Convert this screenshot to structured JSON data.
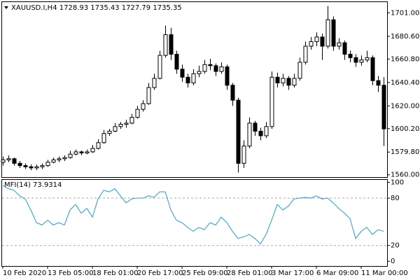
{
  "chart_data": [
    {
      "type": "candlestick",
      "title": "XAUUSD.I,H4  1728.93 1735.43 1727.79 1735.35",
      "categories": [
        "10 Feb 2020",
        null,
        null,
        null,
        null,
        null,
        null,
        null,
        "13 Feb 05:00",
        null,
        null,
        null,
        null,
        null,
        null,
        null,
        "18 Feb 01:00",
        null,
        null,
        null,
        null,
        null,
        null,
        null,
        "20 Feb 17:00",
        null,
        null,
        null,
        null,
        null,
        null,
        null,
        "25 Feb 09:00",
        null,
        null,
        null,
        null,
        null,
        null,
        null,
        "28 Feb 01:00",
        null,
        null,
        null,
        null,
        null,
        null,
        null,
        "3 Mar 17:00",
        null,
        null,
        null,
        null,
        null,
        null,
        null,
        "6 Mar 09:00",
        null,
        null,
        null,
        null,
        null,
        null,
        null,
        "11 Mar 00:00",
        null,
        null,
        null,
        null
      ],
      "open": [
        1571,
        1573,
        1574,
        1570,
        1568,
        1567,
        1566,
        1567,
        1568,
        1571,
        1573,
        1574,
        1575,
        1578,
        1580,
        1579,
        1580,
        1583,
        1588,
        1596,
        1598,
        1602,
        1604,
        1605,
        1610,
        1617,
        1622,
        1636,
        1644,
        1664,
        1682,
        1665,
        1652,
        1645,
        1640,
        1648,
        1650,
        1656,
        1655,
        1650,
        1654,
        1638,
        1625,
        1570,
        1585,
        1605,
        1598,
        1594,
        1602,
        1645,
        1640,
        1644,
        1638,
        1644,
        1658,
        1672,
        1676,
        1680,
        1672,
        1695,
        1672,
        1675,
        1665,
        1662,
        1658,
        1660,
        1662,
        1642,
        1638
      ],
      "high": [
        1576,
        1577,
        1575,
        1572,
        1570,
        1569,
        1569,
        1570,
        1573,
        1575,
        1576,
        1577,
        1581,
        1582,
        1581,
        1582,
        1586,
        1591,
        1599,
        1600,
        1605,
        1606,
        1608,
        1613,
        1620,
        1625,
        1640,
        1648,
        1668,
        1690,
        1688,
        1668,
        1656,
        1648,
        1652,
        1655,
        1660,
        1661,
        1657,
        1658,
        1656,
        1640,
        1627,
        1590,
        1610,
        1607,
        1601,
        1606,
        1650,
        1649,
        1648,
        1646,
        1648,
        1662,
        1676,
        1680,
        1684,
        1683,
        1707,
        1698,
        1679,
        1677,
        1668,
        1665,
        1664,
        1668,
        1664,
        1646,
        1645
      ],
      "low": [
        1568,
        1571,
        1568,
        1566,
        1565,
        1564,
        1564,
        1565,
        1567,
        1570,
        1571,
        1572,
        1574,
        1577,
        1577,
        1578,
        1579,
        1582,
        1587,
        1594,
        1597,
        1600,
        1601,
        1604,
        1609,
        1615,
        1621,
        1634,
        1643,
        1662,
        1660,
        1648,
        1641,
        1636,
        1638,
        1645,
        1648,
        1651,
        1646,
        1648,
        1634,
        1620,
        1562,
        1566,
        1583,
        1594,
        1590,
        1592,
        1600,
        1636,
        1637,
        1634,
        1636,
        1642,
        1656,
        1669,
        1672,
        1660,
        1670,
        1668,
        1669,
        1660,
        1658,
        1654,
        1655,
        1658,
        1638,
        1632,
        1585
      ],
      "close": [
        1573,
        1574,
        1570,
        1568,
        1567,
        1566,
        1567,
        1568,
        1571,
        1573,
        1574,
        1575,
        1578,
        1580,
        1579,
        1580,
        1583,
        1588,
        1596,
        1598,
        1602,
        1604,
        1605,
        1610,
        1617,
        1622,
        1636,
        1644,
        1664,
        1682,
        1665,
        1652,
        1645,
        1640,
        1648,
        1650,
        1656,
        1655,
        1650,
        1654,
        1638,
        1625,
        1570,
        1585,
        1605,
        1598,
        1594,
        1602,
        1645,
        1640,
        1644,
        1638,
        1644,
        1658,
        1672,
        1676,
        1680,
        1672,
        1695,
        1672,
        1675,
        1665,
        1662,
        1658,
        1660,
        1662,
        1642,
        1638,
        1600
      ],
      "ylim": [
        1558,
        1711
      ],
      "yticks": [
        {
          "value": 1701,
          "label": "1701.00"
        },
        {
          "value": 1680.6,
          "label": "1680.60"
        },
        {
          "value": 1660.8,
          "label": "1660.80"
        },
        {
          "value": 1640.4,
          "label": "1640.40"
        },
        {
          "value": 1620,
          "label": "1620.00"
        },
        {
          "value": 1600.2,
          "label": "1600.20"
        },
        {
          "value": 1579.8,
          "label": "1579.80"
        },
        {
          "value": 1560,
          "label": "1560.00"
        }
      ],
      "grid": false
    },
    {
      "type": "line",
      "title": "MFI(14) 73.9314",
      "color": "#1e9fd6",
      "values": [
        96,
        92,
        90,
        83,
        79,
        65,
        49,
        46,
        52,
        46,
        49,
        46,
        65,
        72,
        61,
        67,
        56,
        79,
        90,
        88,
        92,
        83,
        74,
        79,
        80,
        80,
        83,
        81,
        88,
        88,
        65,
        52,
        49,
        43,
        38,
        43,
        40,
        49,
        46,
        56,
        49,
        38,
        29,
        31,
        34,
        29,
        22,
        34,
        52,
        72,
        65,
        70,
        79,
        80,
        81,
        80,
        83,
        79,
        80,
        74,
        67,
        61,
        54,
        29,
        38,
        43,
        34,
        40,
        38
      ],
      "ylim": [
        -6,
        104
      ],
      "yticks": [
        100,
        80,
        20,
        0
      ],
      "levels": [
        80,
        20
      ]
    }
  ]
}
